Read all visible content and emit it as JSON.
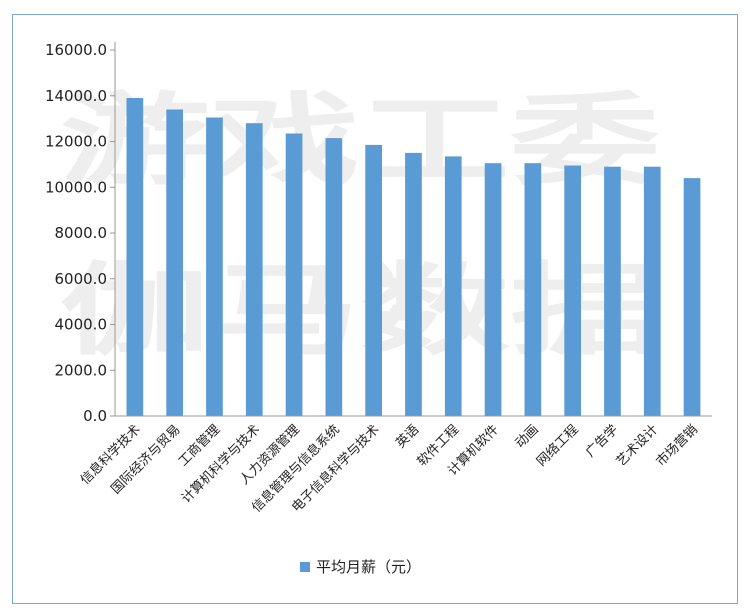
{
  "chart_data": {
    "type": "bar",
    "categories": [
      "信息科学技术",
      "国际经济与贸易",
      "工商管理",
      "计算机科学与技术",
      "人力资源管理",
      "信息管理与信息系统",
      "电子信息科学与技术",
      "英语",
      "软件工程",
      "计算机软件",
      "动画",
      "网络工程",
      "广告学",
      "艺术设计",
      "市场营销"
    ],
    "series": [
      {
        "name": "平均月薪（元）",
        "values": [
          13900,
          13400,
          13050,
          12800,
          12350,
          12150,
          11850,
          11500,
          11350,
          11050,
          11050,
          10950,
          10900,
          10900,
          10400
        ]
      }
    ],
    "ylim": [
      0,
      16000
    ],
    "yticks": [
      "0.0",
      "2000.0",
      "4000.0",
      "6000.0",
      "8000.0",
      "10000.0",
      "12000.0",
      "14000.0",
      "16000.0"
    ],
    "grid": false,
    "legend_position": "bottom",
    "bar_color": "#5b9bd5"
  },
  "watermark": {
    "line1": "游戏工委",
    "line2": "伽马数据"
  }
}
